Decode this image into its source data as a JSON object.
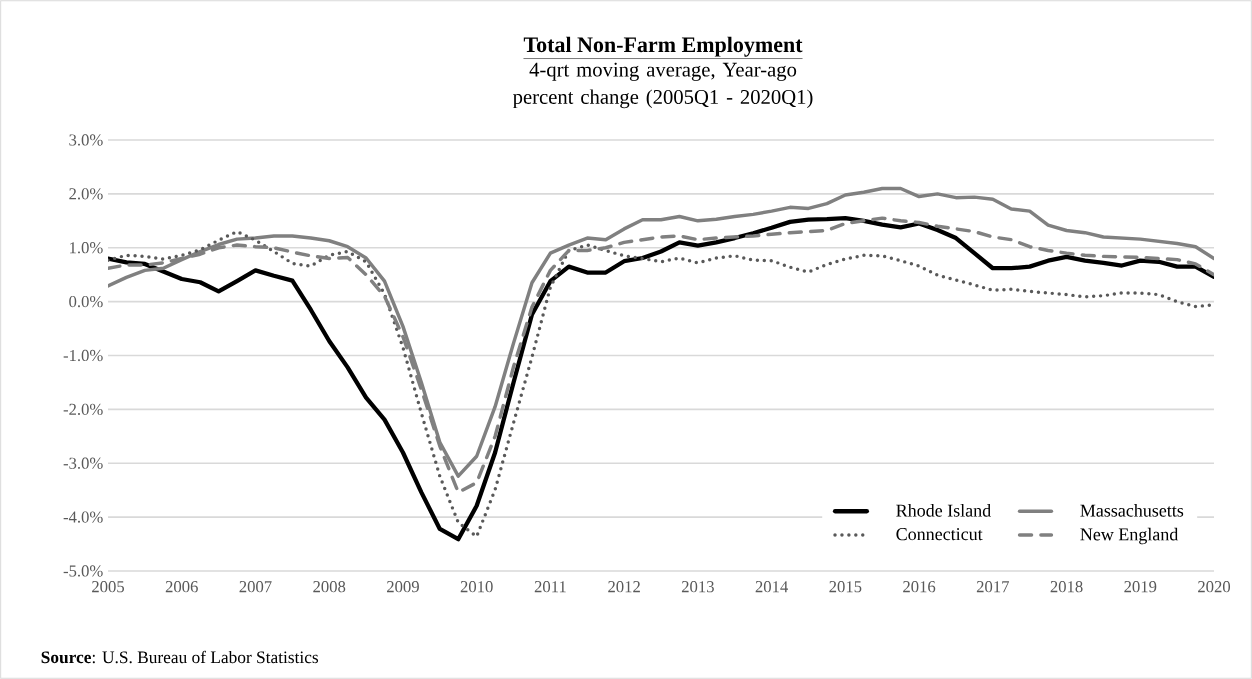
{
  "chart_data": {
    "type": "line",
    "title": "Total Non-Farm Employment",
    "subtitle": "4-qrt moving average, Year-ago percent change (2005Q1 - 2020Q1)",
    "x": [
      2005,
      2005.25,
      2005.5,
      2005.75,
      2006,
      2006.25,
      2006.5,
      2006.75,
      2007,
      2007.25,
      2007.5,
      2007.75,
      2008,
      2008.25,
      2008.5,
      2008.75,
      2009,
      2009.25,
      2009.5,
      2009.75,
      2010,
      2010.25,
      2010.5,
      2010.75,
      2011,
      2011.25,
      2011.5,
      2011.75,
      2012,
      2012.25,
      2012.5,
      2012.75,
      2013,
      2013.25,
      2013.5,
      2013.75,
      2014,
      2014.25,
      2014.5,
      2014.75,
      2015,
      2015.25,
      2015.5,
      2015.75,
      2016,
      2016.25,
      2016.5,
      2016.75,
      2017,
      2017.25,
      2017.5,
      2017.75,
      2018,
      2018.25,
      2018.5,
      2018.75,
      2019,
      2019.25,
      2019.5,
      2019.75,
      2020
    ],
    "series": [
      {
        "name": "Rhode Island",
        "color": "#000000",
        "line_style": "solid",
        "values": [
          0.8,
          0.73,
          0.7,
          0.56,
          0.42,
          0.36,
          0.19,
          0.38,
          0.58,
          0.48,
          0.39,
          -0.15,
          -0.73,
          -1.22,
          -1.78,
          -2.19,
          -2.8,
          -3.54,
          -4.22,
          -4.41,
          -3.79,
          -2.8,
          -1.5,
          -0.24,
          0.38,
          0.65,
          0.54,
          0.54,
          0.75,
          0.81,
          0.93,
          1.1,
          1.04,
          1.1,
          1.18,
          1.27,
          1.37,
          1.48,
          1.52,
          1.53,
          1.55,
          1.5,
          1.43,
          1.38,
          1.45,
          1.33,
          1.18,
          0.9,
          0.62,
          0.62,
          0.65,
          0.76,
          0.83,
          0.76,
          0.72,
          0.67,
          0.76,
          0.74,
          0.65,
          0.65,
          0.46
        ]
      },
      {
        "name": "Massachusetts",
        "color": "#808080",
        "line_style": "solid",
        "values": [
          0.29,
          0.45,
          0.58,
          0.62,
          0.78,
          0.93,
          1.06,
          1.16,
          1.18,
          1.22,
          1.22,
          1.18,
          1.13,
          1.02,
          0.81,
          0.38,
          -0.46,
          -1.5,
          -2.61,
          -3.24,
          -2.87,
          -1.95,
          -0.77,
          0.35,
          0.9,
          1.05,
          1.18,
          1.15,
          1.35,
          1.52,
          1.52,
          1.58,
          1.5,
          1.53,
          1.58,
          1.62,
          1.68,
          1.75,
          1.73,
          1.82,
          1.98,
          2.03,
          2.1,
          2.1,
          1.95,
          2.0,
          1.93,
          1.94,
          1.9,
          1.72,
          1.68,
          1.42,
          1.32,
          1.28,
          1.2,
          1.18,
          1.16,
          1.12,
          1.08,
          1.02,
          0.8
        ]
      },
      {
        "name": "Connecticut",
        "color": "#595959",
        "line_style": "dotted",
        "values": [
          0.77,
          0.86,
          0.84,
          0.79,
          0.86,
          0.96,
          1.14,
          1.3,
          1.14,
          0.93,
          0.71,
          0.66,
          0.86,
          0.93,
          0.74,
          0.14,
          -0.85,
          -2.07,
          -3.24,
          -4.1,
          -4.36,
          -3.49,
          -2.25,
          -1.03,
          0.27,
          0.95,
          1.05,
          0.95,
          0.85,
          0.8,
          0.74,
          0.81,
          0.72,
          0.81,
          0.85,
          0.77,
          0.76,
          0.64,
          0.55,
          0.69,
          0.79,
          0.86,
          0.85,
          0.76,
          0.66,
          0.49,
          0.4,
          0.31,
          0.21,
          0.23,
          0.19,
          0.16,
          0.13,
          0.09,
          0.11,
          0.16,
          0.16,
          0.13,
          0.0,
          -0.09,
          -0.06
        ]
      },
      {
        "name": "New England",
        "color": "#808080",
        "line_style": "dashed",
        "values": [
          0.62,
          0.68,
          0.68,
          0.72,
          0.8,
          0.88,
          1.0,
          1.05,
          1.02,
          1.0,
          0.92,
          0.85,
          0.8,
          0.82,
          0.5,
          0.1,
          -0.65,
          -1.63,
          -2.68,
          -3.54,
          -3.36,
          -2.5,
          -1.21,
          -0.1,
          0.58,
          0.95,
          0.95,
          1.0,
          1.1,
          1.15,
          1.2,
          1.22,
          1.15,
          1.18,
          1.2,
          1.22,
          1.25,
          1.28,
          1.3,
          1.32,
          1.45,
          1.5,
          1.55,
          1.5,
          1.47,
          1.4,
          1.35,
          1.3,
          1.2,
          1.15,
          1.02,
          0.95,
          0.9,
          0.86,
          0.84,
          0.83,
          0.82,
          0.8,
          0.78,
          0.7,
          0.5
        ]
      }
    ],
    "xlim": [
      2005,
      2020
    ],
    "xticks": [
      2005,
      2006,
      2007,
      2008,
      2009,
      2010,
      2011,
      2012,
      2013,
      2014,
      2015,
      2016,
      2017,
      2018,
      2019,
      2020
    ],
    "ylim": [
      -5,
      3
    ],
    "yticks": [
      {
        "value": 3,
        "label": "3.0%"
      },
      {
        "value": 2,
        "label": "2.0%"
      },
      {
        "value": 1,
        "label": "1.0%"
      },
      {
        "value": 0,
        "label": "0.0%"
      },
      {
        "value": -1,
        "label": "-1.0%"
      },
      {
        "value": -2,
        "label": "-2.0%"
      },
      {
        "value": -3,
        "label": "-3.0%"
      },
      {
        "value": -4,
        "label": "-4.0%"
      },
      {
        "value": -5,
        "label": "-5.0%"
      }
    ],
    "grid": "y",
    "legend": "bottom right",
    "marker": "none",
    "annotations": [
      "**Source**: U.S. Bureau of Labor Statistics"
    ]
  }
}
